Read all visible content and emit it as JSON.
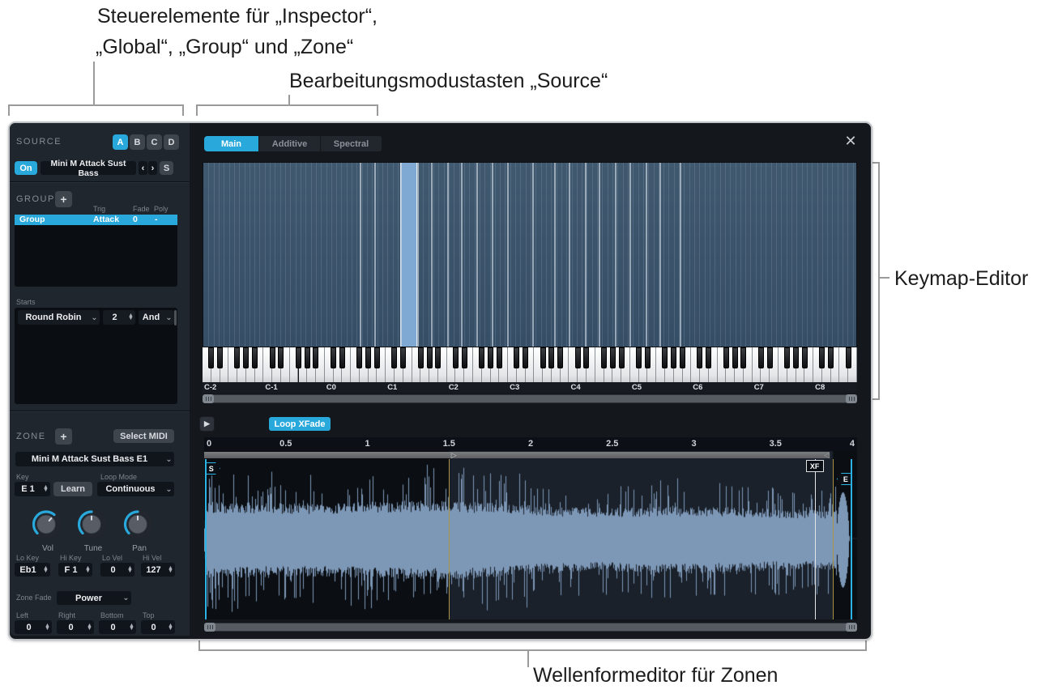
{
  "annotations": {
    "top_left_line1": "Steuerelemente für „Inspector“,",
    "top_left_line2": "„Global“, „Group“ und „Zone“",
    "top_center": "Bearbeitungsmodustasten „Source“",
    "right": "Keymap-Editor",
    "bottom": "Wellenformeditor für Zonen"
  },
  "sidebar": {
    "source": {
      "title": "SOURCE",
      "slots": [
        "A",
        "B",
        "C",
        "D"
      ],
      "active_slot": "A",
      "on_button": "On",
      "sample_name": "Mini M Attack Sust Bass",
      "prev_icon": "‹",
      "next_icon": "›",
      "solo_button": "S"
    },
    "group": {
      "title": "GROUP",
      "add_button": "+",
      "columns": [
        "Trig",
        "Fade",
        "Poly"
      ],
      "selected_row": {
        "name": "Group",
        "trig": "Attack",
        "fade": "0",
        "poly": "-"
      },
      "starts_label": "Starts",
      "round_robin": {
        "mode": "Round Robin",
        "count": "2",
        "operator": "And"
      }
    },
    "zone": {
      "title": "ZONE",
      "add_button": "+",
      "select_midi_button": "Select MIDI",
      "zone_name": "Mini M Attack Sust Bass E1",
      "key_label": "Key",
      "key_value": "E 1",
      "learn_button": "Learn",
      "loop_mode_label": "Loop Mode",
      "loop_mode_value": "Continuous",
      "knobs": [
        {
          "label": "Vol",
          "pointer_deg": 40
        },
        {
          "label": "Tune",
          "pointer_deg": 0
        },
        {
          "label": "Pan",
          "pointer_deg": 0
        }
      ],
      "range_fields": [
        {
          "label": "Lo Key",
          "value": "Eb1"
        },
        {
          "label": "Hi Key",
          "value": "F 1"
        },
        {
          "label": "Lo Vel",
          "value": "0"
        },
        {
          "label": "Hi Vel",
          "value": "127"
        }
      ],
      "zone_fade_label": "Zone Fade",
      "zone_fade_value": "Power",
      "fade_fields": [
        {
          "label": "Left",
          "value": "0"
        },
        {
          "label": "Right",
          "value": "0"
        },
        {
          "label": "Bottom",
          "value": "0"
        },
        {
          "label": "Top",
          "value": "0"
        }
      ]
    }
  },
  "editor": {
    "tabs": [
      "Main",
      "Additive",
      "Spectral"
    ],
    "active_tab": "Main",
    "close_icon": "✕",
    "keymap": {
      "semitones": 128,
      "separators_pct": [
        23.9,
        26.2,
        30.1,
        32.7,
        34.9,
        37.3,
        39.5,
        41.8,
        44.2,
        46.5,
        50.4,
        53.7,
        55.9,
        58.4,
        60.6,
        63.0,
        65.3,
        67.7,
        69.9,
        72.9
      ],
      "selected_zone_pct": {
        "start": 30.1,
        "end": 32.7
      },
      "octave_labels": [
        "C-2",
        "C-1",
        "C0",
        "C1",
        "C2",
        "C3",
        "C4",
        "C5",
        "C6",
        "C7",
        "C8"
      ]
    },
    "transport": {
      "play_icon": "▶",
      "loop_xfade_button": "Loop XFade"
    },
    "waveform": {
      "ruler_ticks": [
        "0",
        "0.5",
        "1",
        "1.5",
        "2",
        "2.5",
        "3",
        "3.5",
        "4"
      ],
      "markers": {
        "sample_start_label": "S",
        "sample_start_pct": 0.1,
        "loop_start_pct": 37.5,
        "crossfade_label": "XF",
        "crossfade_pct": 93.5,
        "loop_end_pct": 96.3,
        "sample_end_label": "E",
        "sample_end_pct": 99.0,
        "loop_bar_end_pct": 95.8,
        "loop_start_handle_icon": "▷",
        "loop_end_handle_icon": "◁"
      }
    }
  },
  "colors": {
    "accent": "#29a9db",
    "keymap_zone": "#3a5267",
    "keymap_selected": "#7fa9d2",
    "waveform": "#7d97b6",
    "loop_line": "#a99544",
    "window_bg": "#14181d",
    "sidebar_bg": "#20262e",
    "panel_bg": "#0a0e12",
    "field_bg": "#10151b",
    "button_bg": "#3f454d"
  }
}
